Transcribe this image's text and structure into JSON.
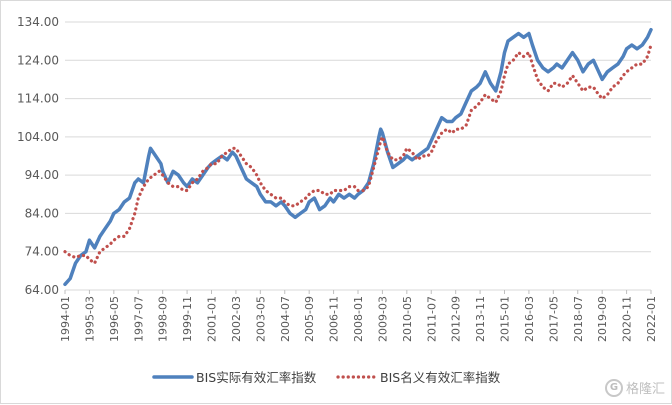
{
  "chart_data": {
    "type": "line",
    "title": "",
    "xlabel": "",
    "ylabel": "",
    "ylim": [
      64,
      134
    ],
    "yticks": [
      "64.00",
      "74.00",
      "84.00",
      "94.00",
      "104.00",
      "114.00",
      "124.00",
      "134.00"
    ],
    "x_ticks": [
      "1994-01",
      "1995-03",
      "1996-05",
      "1997-07",
      "1998-09",
      "1999-11",
      "2001-01",
      "2002-03",
      "2003-05",
      "2004-07",
      "2005-09",
      "2006-11",
      "2008-01",
      "2009-03",
      "2010-05",
      "2011-07",
      "2012-09",
      "2013-11",
      "2015-01",
      "2016-03",
      "2017-05",
      "2018-07",
      "2019-09",
      "2020-11",
      "2022-01"
    ],
    "grid": true,
    "legend_position": "bottom",
    "series": [
      {
        "name": "BIS实际有效汇率指数",
        "color": "#4f81bd",
        "style": "solid",
        "points": [
          [
            "1994-01",
            65.5
          ],
          [
            "1994-04",
            67
          ],
          [
            "1994-07",
            71
          ],
          [
            "1994-10",
            73
          ],
          [
            "1995-01",
            74
          ],
          [
            "1995-03",
            77
          ],
          [
            "1995-06",
            75
          ],
          [
            "1995-09",
            78
          ],
          [
            "1995-12",
            80
          ],
          [
            "1996-03",
            82
          ],
          [
            "1996-05",
            84
          ],
          [
            "1996-08",
            85
          ],
          [
            "1996-11",
            87
          ],
          [
            "1997-02",
            88
          ],
          [
            "1997-05",
            92
          ],
          [
            "1997-07",
            93
          ],
          [
            "1997-10",
            92
          ],
          [
            "1998-01",
            99
          ],
          [
            "1998-02",
            101
          ],
          [
            "1998-05",
            99
          ],
          [
            "1998-08",
            97
          ],
          [
            "1998-09",
            95
          ],
          [
            "1998-12",
            92
          ],
          [
            "1999-03",
            95
          ],
          [
            "1999-06",
            94
          ],
          [
            "1999-09",
            92
          ],
          [
            "1999-11",
            91
          ],
          [
            "2000-02",
            93
          ],
          [
            "2000-05",
            92
          ],
          [
            "2000-08",
            94
          ],
          [
            "2000-11",
            96
          ],
          [
            "2001-01",
            97
          ],
          [
            "2001-04",
            98
          ],
          [
            "2001-07",
            99
          ],
          [
            "2001-10",
            98
          ],
          [
            "2002-01",
            100
          ],
          [
            "2002-03",
            99
          ],
          [
            "2002-06",
            96
          ],
          [
            "2002-09",
            93
          ],
          [
            "2002-12",
            92
          ],
          [
            "2003-03",
            91
          ],
          [
            "2003-05",
            89
          ],
          [
            "2003-08",
            87
          ],
          [
            "2003-11",
            87
          ],
          [
            "2004-02",
            86
          ],
          [
            "2004-05",
            87
          ],
          [
            "2004-07",
            86
          ],
          [
            "2004-10",
            84
          ],
          [
            "2005-01",
            83
          ],
          [
            "2005-04",
            84
          ],
          [
            "2005-07",
            85
          ],
          [
            "2005-09",
            87
          ],
          [
            "2005-12",
            88
          ],
          [
            "2006-03",
            85
          ],
          [
            "2006-06",
            86
          ],
          [
            "2006-09",
            88
          ],
          [
            "2006-11",
            87
          ],
          [
            "2007-02",
            89
          ],
          [
            "2007-05",
            88
          ],
          [
            "2007-08",
            89
          ],
          [
            "2007-11",
            88
          ],
          [
            "2008-01",
            89
          ],
          [
            "2008-04",
            90
          ],
          [
            "2008-07",
            92
          ],
          [
            "2008-10",
            97
          ],
          [
            "2009-01",
            104
          ],
          [
            "2009-02",
            106
          ],
          [
            "2009-03",
            105
          ],
          [
            "2009-06",
            100
          ],
          [
            "2009-09",
            96
          ],
          [
            "2009-12",
            97
          ],
          [
            "2010-03",
            98
          ],
          [
            "2010-05",
            99
          ],
          [
            "2010-08",
            98
          ],
          [
            "2010-11",
            99
          ],
          [
            "2011-02",
            100
          ],
          [
            "2011-05",
            101
          ],
          [
            "2011-07",
            103
          ],
          [
            "2011-10",
            106
          ],
          [
            "2012-01",
            109
          ],
          [
            "2012-04",
            108
          ],
          [
            "2012-07",
            108
          ],
          [
            "2012-09",
            109
          ],
          [
            "2012-12",
            110
          ],
          [
            "2013-03",
            113
          ],
          [
            "2013-06",
            116
          ],
          [
            "2013-09",
            117
          ],
          [
            "2013-11",
            118
          ],
          [
            "2014-02",
            121
          ],
          [
            "2014-05",
            118
          ],
          [
            "2014-08",
            116
          ],
          [
            "2014-11",
            121
          ],
          [
            "2015-01",
            126
          ],
          [
            "2015-03",
            129
          ],
          [
            "2015-06",
            130
          ],
          [
            "2015-09",
            131
          ],
          [
            "2015-12",
            130
          ],
          [
            "2016-03",
            131
          ],
          [
            "2016-05",
            128
          ],
          [
            "2016-08",
            124
          ],
          [
            "2016-11",
            122
          ],
          [
            "2017-02",
            121
          ],
          [
            "2017-05",
            122
          ],
          [
            "2017-07",
            123
          ],
          [
            "2017-10",
            122
          ],
          [
            "2018-01",
            124
          ],
          [
            "2018-04",
            126
          ],
          [
            "2018-07",
            124
          ],
          [
            "2018-10",
            121
          ],
          [
            "2019-01",
            123
          ],
          [
            "2019-04",
            124
          ],
          [
            "2019-07",
            121
          ],
          [
            "2019-09",
            119
          ],
          [
            "2019-12",
            121
          ],
          [
            "2020-03",
            122
          ],
          [
            "2020-06",
            123
          ],
          [
            "2020-09",
            125
          ],
          [
            "2020-11",
            127
          ],
          [
            "2021-02",
            128
          ],
          [
            "2021-05",
            127
          ],
          [
            "2021-08",
            128
          ],
          [
            "2021-11",
            130
          ],
          [
            "2022-01",
            132
          ]
        ]
      },
      {
        "name": "BIS名义有效汇率指数",
        "color": "#c0504d",
        "style": "dotted",
        "points": [
          [
            "1994-01",
            74
          ],
          [
            "1994-04",
            73
          ],
          [
            "1994-07",
            72.5
          ],
          [
            "1994-10",
            73
          ],
          [
            "1995-01",
            73
          ],
          [
            "1995-03",
            72
          ],
          [
            "1995-06",
            71
          ],
          [
            "1995-09",
            74
          ],
          [
            "1995-12",
            75
          ],
          [
            "1996-03",
            76
          ],
          [
            "1996-05",
            77
          ],
          [
            "1996-08",
            78
          ],
          [
            "1996-11",
            78
          ],
          [
            "1997-02",
            80
          ],
          [
            "1997-05",
            84
          ],
          [
            "1997-07",
            88
          ],
          [
            "1997-10",
            91
          ],
          [
            "1998-01",
            93
          ],
          [
            "1998-04",
            94
          ],
          [
            "1998-07",
            95
          ],
          [
            "1998-09",
            94
          ],
          [
            "1998-12",
            92
          ],
          [
            "1999-03",
            91
          ],
          [
            "1999-06",
            91
          ],
          [
            "1999-09",
            90
          ],
          [
            "1999-11",
            90
          ],
          [
            "2000-02",
            92
          ],
          [
            "2000-05",
            93
          ],
          [
            "2000-08",
            95
          ],
          [
            "2000-11",
            96
          ],
          [
            "2001-01",
            97
          ],
          [
            "2001-04",
            97
          ],
          [
            "2001-07",
            99
          ],
          [
            "2001-10",
            100
          ],
          [
            "2002-01",
            101
          ],
          [
            "2002-03",
            101
          ],
          [
            "2002-06",
            99
          ],
          [
            "2002-09",
            97
          ],
          [
            "2002-12",
            96
          ],
          [
            "2003-03",
            94
          ],
          [
            "2003-05",
            92
          ],
          [
            "2003-08",
            90
          ],
          [
            "2003-11",
            89
          ],
          [
            "2004-02",
            88
          ],
          [
            "2004-05",
            88
          ],
          [
            "2004-07",
            87
          ],
          [
            "2004-10",
            86
          ],
          [
            "2005-01",
            86
          ],
          [
            "2005-04",
            87
          ],
          [
            "2005-07",
            88
          ],
          [
            "2005-09",
            89
          ],
          [
            "2005-12",
            90
          ],
          [
            "2006-03",
            90
          ],
          [
            "2006-06",
            89
          ],
          [
            "2006-09",
            89
          ],
          [
            "2006-11",
            90
          ],
          [
            "2007-02",
            90
          ],
          [
            "2007-05",
            90
          ],
          [
            "2007-08",
            91
          ],
          [
            "2007-11",
            91
          ],
          [
            "2008-01",
            90
          ],
          [
            "2008-04",
            90
          ],
          [
            "2008-07",
            91
          ],
          [
            "2008-10",
            96
          ],
          [
            "2009-01",
            101
          ],
          [
            "2009-02",
            103
          ],
          [
            "2009-03",
            104
          ],
          [
            "2009-06",
            100
          ],
          [
            "2009-09",
            98
          ],
          [
            "2009-12",
            98
          ],
          [
            "2010-03",
            99
          ],
          [
            "2010-05",
            101
          ],
          [
            "2010-08",
            100
          ],
          [
            "2010-11",
            98
          ],
          [
            "2011-02",
            99
          ],
          [
            "2011-05",
            99
          ],
          [
            "2011-07",
            100
          ],
          [
            "2011-10",
            103
          ],
          [
            "2012-01",
            105
          ],
          [
            "2012-04",
            106
          ],
          [
            "2012-07",
            105
          ],
          [
            "2012-09",
            106
          ],
          [
            "2012-12",
            106
          ],
          [
            "2013-03",
            107
          ],
          [
            "2013-06",
            111
          ],
          [
            "2013-09",
            112
          ],
          [
            "2013-11",
            113
          ],
          [
            "2014-02",
            115
          ],
          [
            "2014-05",
            114
          ],
          [
            "2014-08",
            113
          ],
          [
            "2014-11",
            116
          ],
          [
            "2015-01",
            120
          ],
          [
            "2015-03",
            123
          ],
          [
            "2015-06",
            124
          ],
          [
            "2015-09",
            126
          ],
          [
            "2015-12",
            125
          ],
          [
            "2016-03",
            126
          ],
          [
            "2016-05",
            123
          ],
          [
            "2016-08",
            119
          ],
          [
            "2016-11",
            117
          ],
          [
            "2017-02",
            116
          ],
          [
            "2017-05",
            118
          ],
          [
            "2017-07",
            118
          ],
          [
            "2017-10",
            117
          ],
          [
            "2018-01",
            118
          ],
          [
            "2018-04",
            120
          ],
          [
            "2018-07",
            118
          ],
          [
            "2018-10",
            116
          ],
          [
            "2019-01",
            117
          ],
          [
            "2019-04",
            117
          ],
          [
            "2019-07",
            115
          ],
          [
            "2019-09",
            114
          ],
          [
            "2019-12",
            115
          ],
          [
            "2020-03",
            117
          ],
          [
            "2020-06",
            118
          ],
          [
            "2020-09",
            120
          ],
          [
            "2020-11",
            121
          ],
          [
            "2021-02",
            122
          ],
          [
            "2021-05",
            123
          ],
          [
            "2021-08",
            123
          ],
          [
            "2021-11",
            125
          ],
          [
            "2022-01",
            128
          ]
        ]
      }
    ]
  },
  "watermark": {
    "icon": "G",
    "text": "格隆汇"
  }
}
